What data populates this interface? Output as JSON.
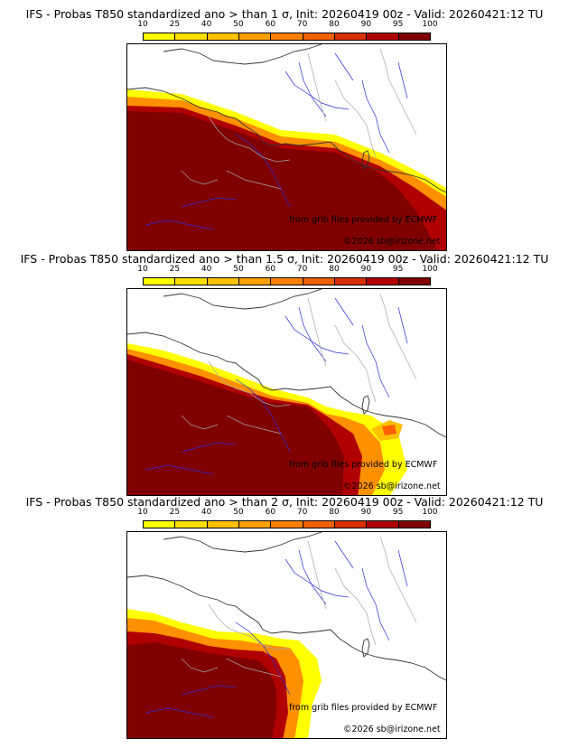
{
  "panels": [
    {
      "title": "IFS - Probas T850  standardized ano > than 1 σ, Init: 20260419 00z - Valid: 20260421:12 TU",
      "source_credit": "from grib files provided by ECMWF",
      "copyright": "©2026 sb@irizone.net"
    },
    {
      "title": "IFS - Probas T850  standardized ano > than 1.5 σ, Init: 20260419 00z - Valid: 20260421:12 TU",
      "source_credit": "from grib files provided by ECMWF",
      "copyright": "©2026 sb@irizone.net"
    },
    {
      "title": "IFS - Probas T850  standardized ano > than 2 σ, Init: 20260419 00z - Valid: 20260421:12 TU",
      "source_credit": "from grib files provided by ECMWF",
      "copyright": "©2026 sb@irizone.net"
    }
  ],
  "colorbar": {
    "ticks": [
      "10",
      "25",
      "40",
      "50",
      "60",
      "70",
      "80",
      "90",
      "95",
      "100"
    ],
    "colors": [
      "#ffff00",
      "#ffe000",
      "#ffc000",
      "#ffa000",
      "#ff8000",
      "#f06000",
      "#d83000",
      "#b00000",
      "#800000"
    ]
  }
}
